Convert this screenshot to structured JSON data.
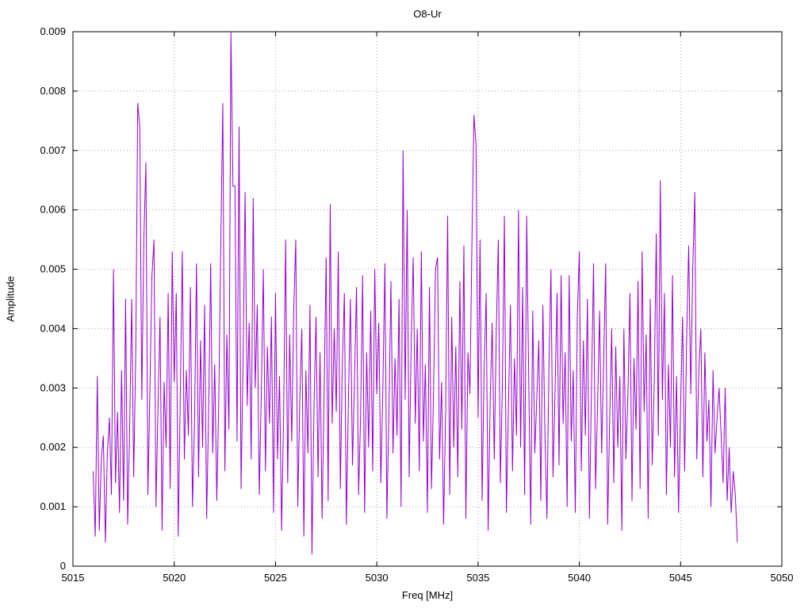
{
  "chart_data": {
    "type": "line",
    "title": "O8-Ur",
    "xlabel": "Freq [MHz]",
    "ylabel": "Amplitude",
    "xlim": [
      5015,
      5050
    ],
    "ylim": [
      0,
      0.009
    ],
    "xticks": [
      5015,
      5020,
      5025,
      5030,
      5035,
      5040,
      5045,
      5050
    ],
    "xtick_labels": [
      "5015",
      "5020",
      "5025",
      "5030",
      "5035",
      "5040",
      "5045",
      "5050"
    ],
    "yticks": [
      0,
      0.001,
      0.002,
      0.003,
      0.004,
      0.005,
      0.006,
      0.007,
      0.008,
      0.009
    ],
    "ytick_labels": [
      "0",
      "0.001",
      "0.002",
      "0.003",
      "0.004",
      "0.005",
      "0.006",
      "0.007",
      "0.008",
      "0.009"
    ],
    "grid": true,
    "legend_position": "none",
    "colors": {
      "line": "#9400d3",
      "grid": "#a8a8a8",
      "border": "#000000",
      "background": "#ffffff"
    },
    "series": [
      {
        "x_start": 5016.0,
        "x_step": 0.1,
        "scale": 0.001,
        "values": [
          1.6,
          0.5,
          3.2,
          0.6,
          1.8,
          2.2,
          0.4,
          1.9,
          2.5,
          1.2,
          5.0,
          1.4,
          2.6,
          0.9,
          3.3,
          1.1,
          4.5,
          0.7,
          2.3,
          4.5,
          1.5,
          3.6,
          7.8,
          7.4,
          2.8,
          5.5,
          6.8,
          1.2,
          3.0,
          4.9,
          5.5,
          1.0,
          2.7,
          4.2,
          0.6,
          3.1,
          2.0,
          4.6,
          1.3,
          5.3,
          3.1,
          4.6,
          0.5,
          2.9,
          5.3,
          1.8,
          3.3,
          2.2,
          4.7,
          1.0,
          2.4,
          5.1,
          1.5,
          3.8,
          2.0,
          4.4,
          0.8,
          2.6,
          5.1,
          1.9,
          3.4,
          1.1,
          2.8,
          5.5,
          7.8,
          1.6,
          3.9,
          2.3,
          9.0,
          6.4,
          6.4,
          2.1,
          7.4,
          1.3,
          3.5,
          6.3,
          2.7,
          4.1,
          1.8,
          6.2,
          3.0,
          4.4,
          1.2,
          2.9,
          5.0,
          1.6,
          3.7,
          2.4,
          4.2,
          0.9,
          4.6,
          1.8,
          3.2,
          0.6,
          2.5,
          5.5,
          1.4,
          3.9,
          2.1,
          4.3,
          5.5,
          1.0,
          2.8,
          4.0,
          0.5,
          3.3,
          1.9,
          4.4,
          0.2,
          2.7,
          4.2,
          1.5,
          3.6,
          0.8,
          2.9,
          5.2,
          1.1,
          6.1,
          2.4,
          4.0,
          2.6,
          5.3,
          1.3,
          3.4,
          4.6,
          0.7,
          2.8,
          4.5,
          1.7,
          3.1,
          4.7,
          1.2,
          2.5,
          4.9,
          0.9,
          3.6,
          2.0,
          4.3,
          1.6,
          5.0,
          2.9,
          4.1,
          1.4,
          3.0,
          5.1,
          0.8,
          2.6,
          4.8,
          1.9,
          3.5,
          2.2,
          4.5,
          1.0,
          7.0,
          2.8,
          6.0,
          1.5,
          3.8,
          5.2,
          2.4,
          4.0,
          1.6,
          5.3,
          2.1,
          3.4,
          0.9,
          4.7,
          1.3,
          2.9,
          5.0,
          5.2,
          1.8,
          3.1,
          0.7,
          2.6,
          5.9,
          1.2,
          4.2,
          2.0,
          3.7,
          1.5,
          4.8,
          2.3,
          5.4,
          0.8,
          3.6,
          2.9,
          5.5,
          7.6,
          7.1,
          2.5,
          5.5,
          1.1,
          3.3,
          4.6,
          0.6,
          2.8,
          4.1,
          1.8,
          3.9,
          5.5,
          1.4,
          3.0,
          5.9,
          0.9,
          2.7,
          4.4,
          1.6,
          3.5,
          2.2,
          6.0,
          2.0,
          4.7,
          1.2,
          5.9,
          3.2,
          0.7,
          4.3,
          1.9,
          2.8,
          3.8,
          1.1,
          4.4,
          2.3,
          0.8,
          3.4,
          5.0,
          1.5,
          2.9,
          4.6,
          1.7,
          4.9,
          2.4,
          3.6,
          1.0,
          4.9,
          2.1,
          3.3,
          0.9,
          4.2,
          5.3,
          1.6,
          3.8,
          2.2,
          4.5,
          0.8,
          3.0,
          5.1,
          1.3,
          2.7,
          4.3,
          1.9,
          3.4,
          5.1,
          0.7,
          2.5,
          4.0,
          1.4,
          3.7,
          2.0,
          3.2,
          0.6,
          4.0,
          1.8,
          2.9,
          4.6,
          1.1,
          3.5,
          2.3,
          4.8,
          1.3,
          5.3,
          2.6,
          3.9,
          0.8,
          4.5,
          1.7,
          3.1,
          5.6,
          2.2,
          6.5,
          2.8,
          4.6,
          1.2,
          3.4,
          2.0,
          4.9,
          1.5,
          3.2,
          0.9,
          2.7,
          4.2,
          1.6,
          3.8,
          5.4,
          2.9,
          5.0,
          6.3,
          1.8,
          3.3,
          4.0,
          1.5,
          3.6,
          2.1,
          2.8,
          1.0,
          3.3,
          1.9,
          2.5,
          3.0,
          2.2,
          1.4,
          3.0,
          1.1,
          2.0,
          0.9,
          1.6,
          1.2,
          0.4
        ]
      }
    ]
  }
}
